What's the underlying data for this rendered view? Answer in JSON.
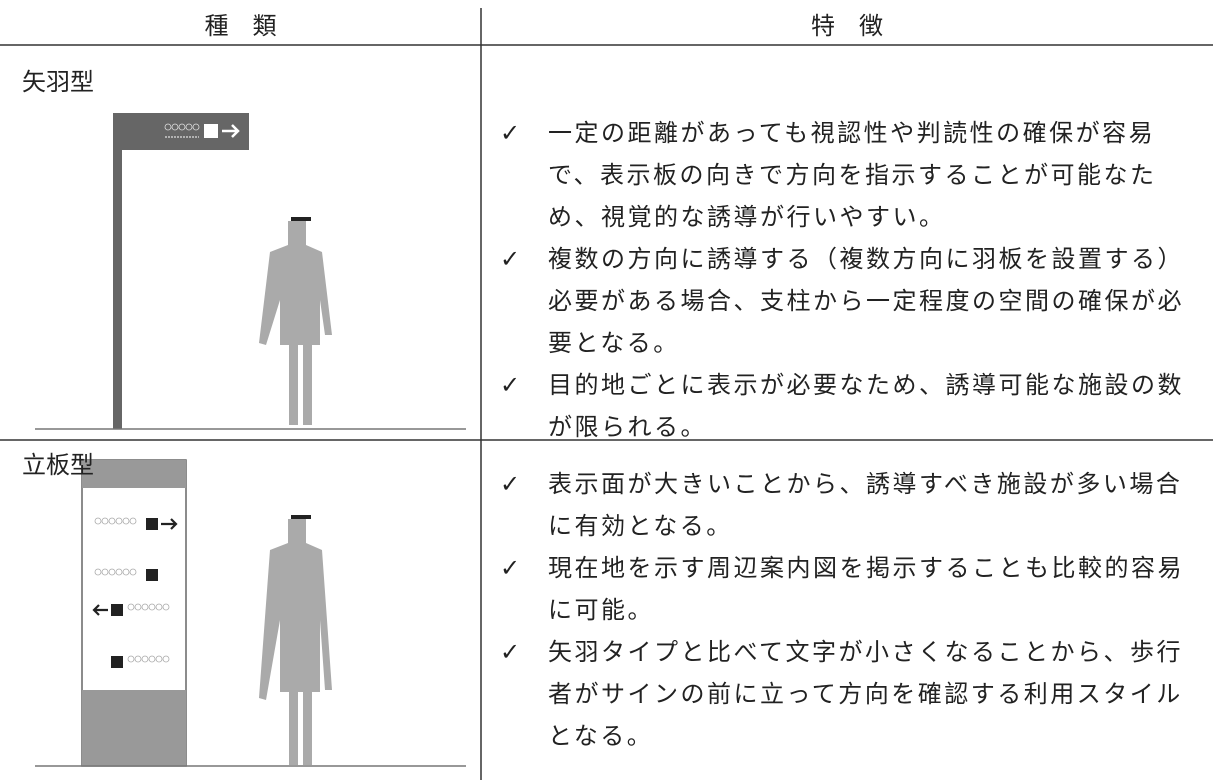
{
  "table": {
    "header": [
      "種　類",
      "特　徴"
    ],
    "bullet_marker": "✓",
    "rows": [
      {
        "type": "矢羽型",
        "features": [
          "一定の距離があっても視認性や判読性の確保が容易で、表示板の向きで方向を指示することが可能なため、視覚的な誘導が行いやすい。",
          "複数の方向に誘導する（複数方向に羽板を設置する）必要がある場合、支柱から一定程度の空間の確保が必要となる。",
          "目的地ごとに表示が必要なため、誘導可能な施設の数が限られる。"
        ]
      },
      {
        "type": "立板型",
        "features": [
          "表示面が大きいことから、誘導すべき施設が多い場合に有効となる。",
          "現在地を示す周辺案内図を掲示することも比較的容易に可能。",
          "矢羽タイプと比べて文字が小さくなることから、歩行者がサインの前に立って方向を確認する利用スタイルとなる。"
        ]
      }
    ]
  }
}
